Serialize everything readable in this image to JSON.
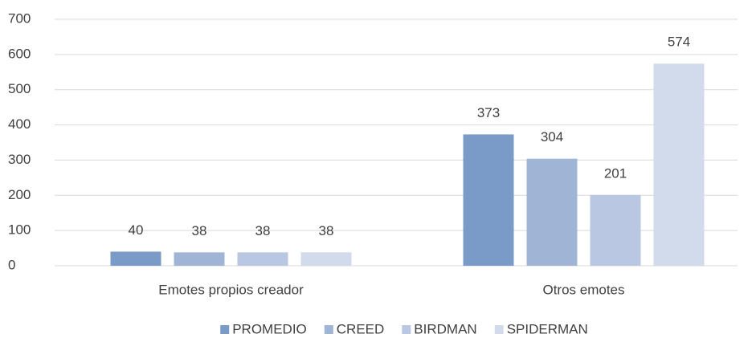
{
  "chart_data": {
    "type": "bar",
    "categories": [
      "Emotes propios creador",
      "Otros emotes"
    ],
    "series": [
      {
        "name": "PROMEDIO",
        "color": "#7a9bc8",
        "values": [
          40,
          373
        ]
      },
      {
        "name": "CREED",
        "color": "#a0b4d6",
        "values": [
          38,
          304
        ]
      },
      {
        "name": "BIRDMAN",
        "color": "#b9c7e2",
        "values": [
          38,
          201
        ]
      },
      {
        "name": "SPIDERMAN",
        "color": "#d2dbeb",
        "values": [
          38,
          574
        ]
      }
    ],
    "ylim": [
      0,
      700
    ],
    "yticks": [
      0,
      100,
      200,
      300,
      400,
      500,
      600,
      700
    ],
    "grid": true,
    "legend": "bottom"
  }
}
